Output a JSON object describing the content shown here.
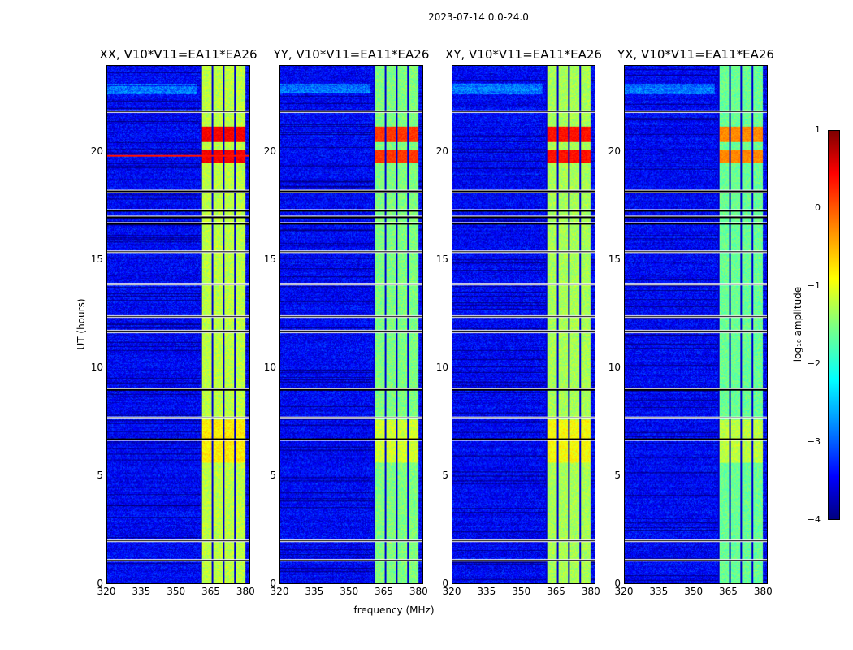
{
  "chart_data": {
    "type": "heatmap",
    "suptitle": "2023-07-14 0.0-24.0",
    "xlabel": "frequency (MHz)",
    "ylabel": "UT (hours)",
    "xlim": [
      320,
      382
    ],
    "ylim": [
      0,
      24
    ],
    "xticks": [
      "320",
      "335",
      "350",
      "365",
      "380"
    ],
    "yticks": [
      "0",
      "5",
      "10",
      "15",
      "20"
    ],
    "band_mhz": [
      360.5,
      380
    ],
    "gaps_hours": [
      1.1,
      2.0,
      6.7,
      7.7,
      9.0,
      11.7,
      12.4,
      13.9,
      15.4,
      16.7,
      17.0,
      17.3,
      18.2,
      21.9
    ],
    "panels": [
      {
        "title": "XX, V10*V11=EA11*EA26",
        "band_level": -1.2,
        "flare_level": 0.4
      },
      {
        "title": "YY, V10*V11=EA11*EA26",
        "band_level": -1.5,
        "flare_level": 0.1
      },
      {
        "title": "XY, V10*V11=EA11*EA26",
        "band_level": -1.3,
        "flare_level": 0.3
      },
      {
        "title": "YX, V10*V11=EA11*EA26",
        "band_level": -1.6,
        "flare_level": -0.3
      }
    ],
    "colorbar": {
      "label": "log₁₀ amplitude",
      "range": [
        -4,
        1
      ],
      "ticks": [
        "1",
        "0",
        "−1",
        "−2",
        "−3",
        "−4"
      ],
      "colormap": "jet"
    }
  }
}
